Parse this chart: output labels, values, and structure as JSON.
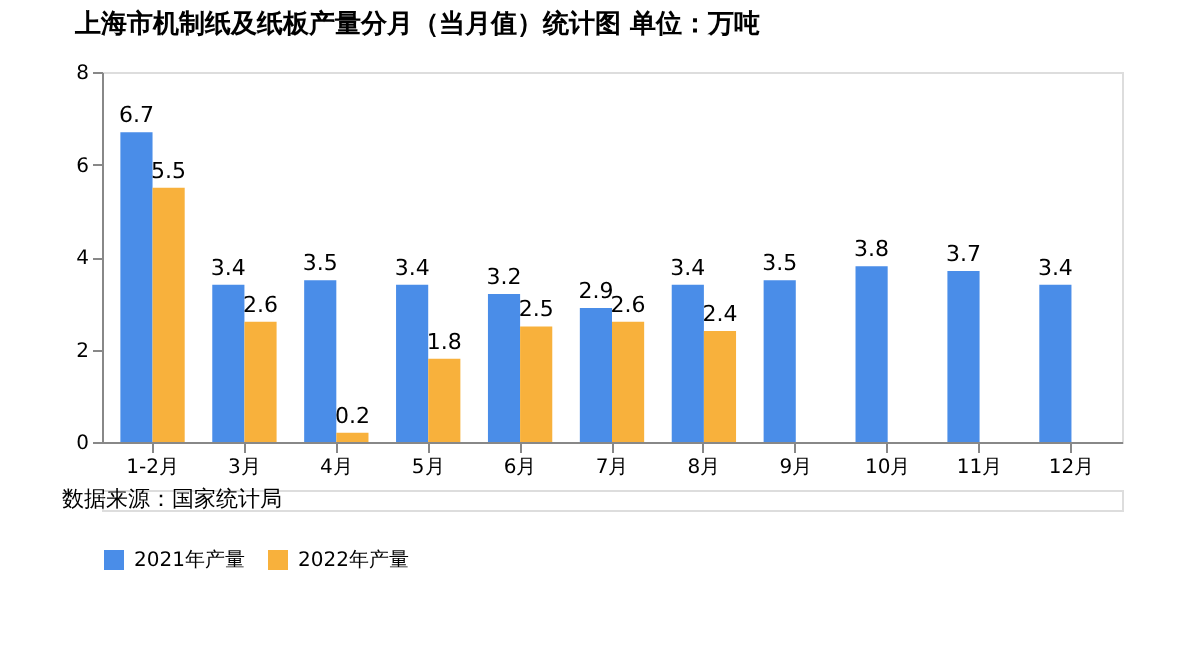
{
  "chart_data": {
    "type": "bar",
    "title": "上海市机制纸及纸板产量分月（当月值）统计图 单位：万吨",
    "categories": [
      "1-2月",
      "3月",
      "4月",
      "5月",
      "6月",
      "7月",
      "8月",
      "9月",
      "10月",
      "11月",
      "12月"
    ],
    "series": [
      {
        "name": "2021年产量",
        "color": "#4a8de8",
        "values": [
          6.7,
          3.4,
          3.5,
          3.4,
          3.2,
          2.9,
          3.4,
          3.5,
          3.8,
          3.7,
          3.4
        ]
      },
      {
        "name": "2022年产量",
        "color": "#f8b13c",
        "values": [
          5.5,
          2.6,
          0.2,
          1.8,
          2.5,
          2.6,
          2.4,
          null,
          null,
          null,
          null
        ]
      }
    ],
    "ylim": [
      0,
      8
    ],
    "yticks": [
      0,
      2,
      4,
      6,
      8
    ],
    "grid": false,
    "legend": "bottom",
    "data_labels": true,
    "annotations": [
      "数据来源：国家统计局"
    ]
  }
}
